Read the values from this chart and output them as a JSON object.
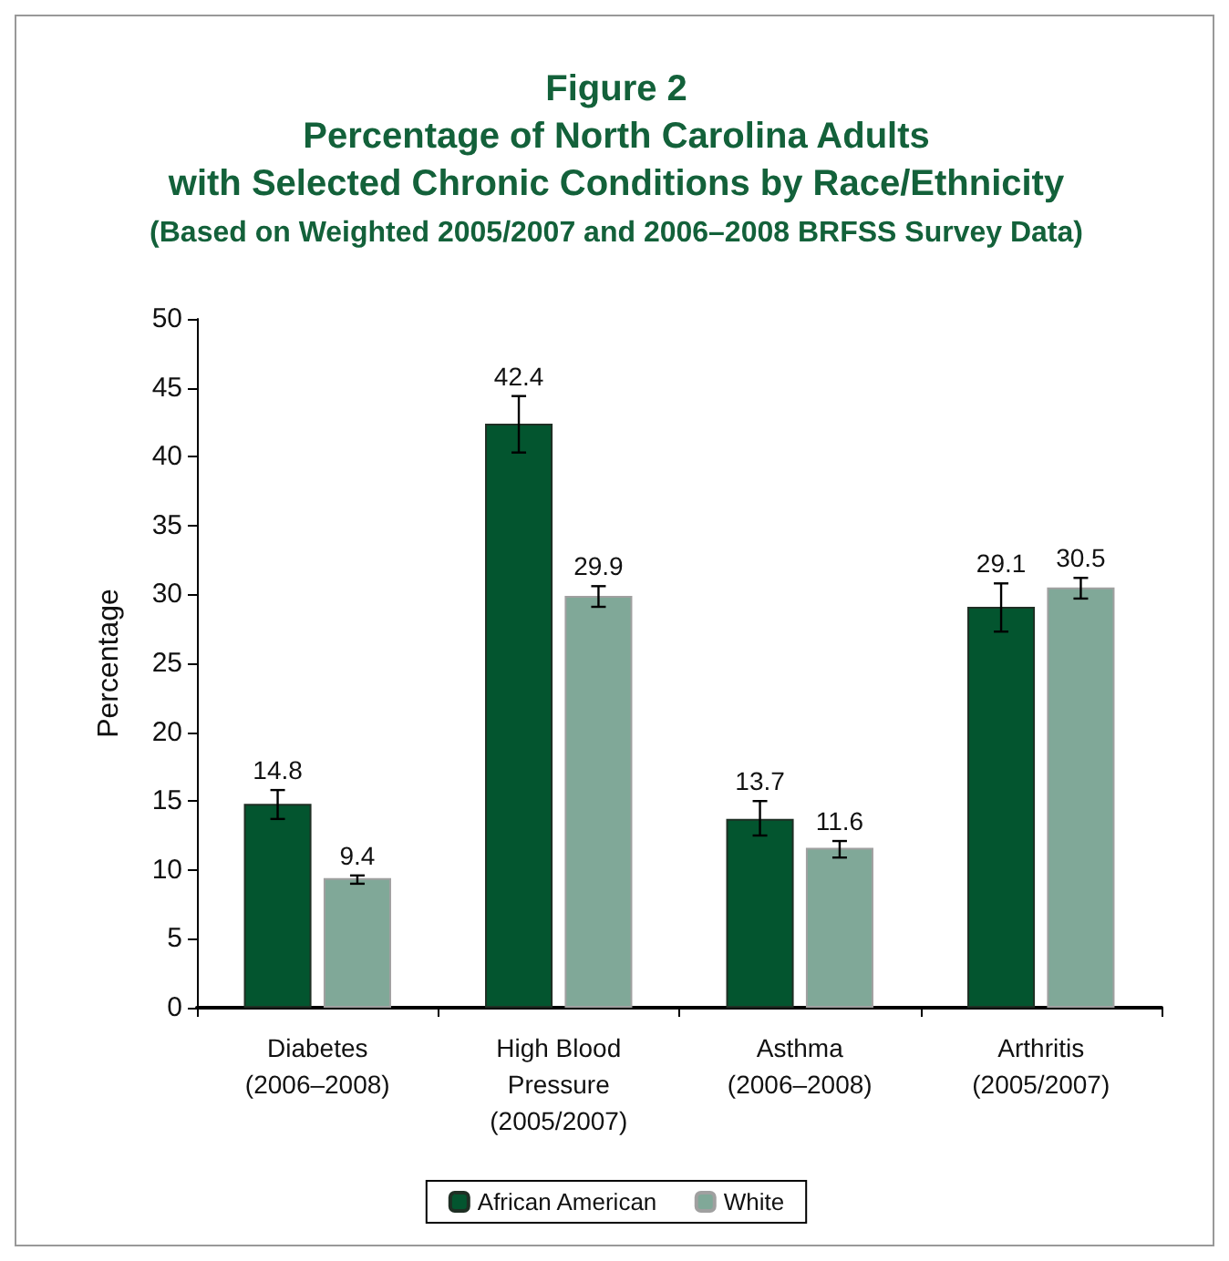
{
  "chart_data": {
    "type": "bar",
    "title": "Figure 2\nPercentage of North Carolina Adults\nwith Selected Chronic Conditions by Race/Ethnicity",
    "subtitle": "(Based on Weighted 2005/2007 and 2006–2008 BRFSS Survey Data)",
    "ylabel": "Percentage",
    "categories": [
      "Diabetes\n(2006–2008)",
      "High Blood\nPressure\n(2005/2007)",
      "Asthma\n(2006–2008)",
      "Arthritis\n(2005/2007)"
    ],
    "series": [
      {
        "name": "African American",
        "color": "#03552f",
        "values": [
          14.8,
          42.4,
          13.7,
          29.1
        ],
        "errors": [
          [
            13.7,
            15.8
          ],
          [
            40.3,
            44.4
          ],
          [
            12.5,
            15.0
          ],
          [
            27.3,
            30.8
          ]
        ]
      },
      {
        "name": "White",
        "color": "#80a898",
        "values": [
          9.4,
          29.9,
          11.6,
          30.5
        ],
        "errors": [
          [
            9.0,
            9.6
          ],
          [
            29.1,
            30.6
          ],
          [
            10.9,
            12.1
          ],
          [
            29.7,
            31.2
          ]
        ]
      }
    ],
    "ylim": [
      0,
      50
    ],
    "yticks": [
      0,
      5,
      10,
      15,
      20,
      25,
      30,
      35,
      40,
      45,
      50
    ],
    "grid": false,
    "legend": "bottom",
    "data_labels": true
  }
}
